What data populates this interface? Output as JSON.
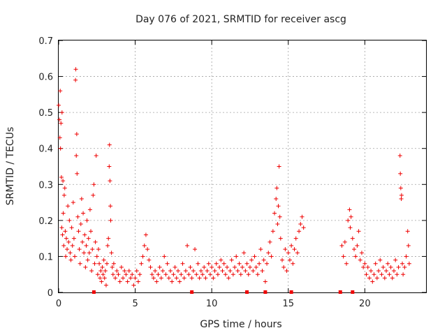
{
  "chart_data": {
    "type": "scatter",
    "title": "Day 076 of 2021, SRMTID for receiver ascg",
    "xlabel": "GPS time / hours",
    "ylabel": "SRMTID / TECUs",
    "xlim": [
      0,
      24
    ],
    "ylim": [
      0,
      0.7
    ],
    "xticks": [
      0,
      5,
      10,
      15,
      20
    ],
    "xtick_labels": [
      "0",
      "5",
      "10",
      "15",
      "20"
    ],
    "yticks": [
      0,
      0.1,
      0.2,
      0.3,
      0.4,
      0.5,
      0.6,
      0.7
    ],
    "ytick_labels": [
      "0",
      "0.1",
      "0.2",
      "0.3",
      "0.4",
      "0.5",
      "0.6",
      "0.7"
    ],
    "grid": true,
    "marker": "plus",
    "color": "#ee0000",
    "series": [
      {
        "name": "SRMTID",
        "points": [
          [
            0.0,
            0.52
          ],
          [
            0.05,
            0.48
          ],
          [
            0.08,
            0.43
          ],
          [
            0.1,
            0.56
          ],
          [
            0.12,
            0.4
          ],
          [
            0.15,
            0.47
          ],
          [
            0.18,
            0.32
          ],
          [
            0.2,
            0.18
          ],
          [
            0.22,
            0.5
          ],
          [
            0.25,
            0.16
          ],
          [
            0.28,
            0.31
          ],
          [
            0.3,
            0.22
          ],
          [
            0.33,
            0.13
          ],
          [
            0.36,
            0.27
          ],
          [
            0.4,
            0.29
          ],
          [
            0.43,
            0.17
          ],
          [
            0.46,
            0.1
          ],
          [
            0.5,
            0.15
          ],
          [
            0.55,
            0.12
          ],
          [
            0.6,
            0.24
          ],
          [
            0.65,
            0.14
          ],
          [
            0.7,
            0.2
          ],
          [
            0.75,
            0.11
          ],
          [
            0.8,
            0.09
          ],
          [
            0.85,
            0.18
          ],
          [
            0.9,
            0.13
          ],
          [
            0.95,
            0.25
          ],
          [
            1.0,
            0.15
          ],
          [
            1.05,
            0.1
          ],
          [
            1.1,
            0.59
          ],
          [
            1.12,
            0.62
          ],
          [
            1.15,
            0.38
          ],
          [
            1.18,
            0.44
          ],
          [
            1.2,
            0.33
          ],
          [
            1.25,
            0.21
          ],
          [
            1.3,
            0.17
          ],
          [
            1.35,
            0.12
          ],
          [
            1.4,
            0.08
          ],
          [
            1.45,
            0.19
          ],
          [
            1.5,
            0.26
          ],
          [
            1.55,
            0.14
          ],
          [
            1.6,
            0.22
          ],
          [
            1.65,
            0.11
          ],
          [
            1.7,
            0.16
          ],
          [
            1.75,
            0.07
          ],
          [
            1.8,
            0.13
          ],
          [
            1.85,
            0.2
          ],
          [
            1.9,
            0.09
          ],
          [
            1.95,
            0.15
          ],
          [
            2.0,
            0.11
          ],
          [
            2.05,
            0.23
          ],
          [
            2.1,
            0.17
          ],
          [
            2.15,
            0.06
          ],
          [
            2.2,
            0.12
          ],
          [
            2.25,
            0.27
          ],
          [
            2.3,
            0.3
          ],
          [
            2.35,
            0.08
          ],
          [
            2.4,
            0.14
          ],
          [
            2.45,
            0.38
          ],
          [
            2.5,
            0.1
          ],
          [
            2.55,
            0.05
          ],
          [
            2.6,
            0.12
          ],
          [
            2.65,
            0.08
          ],
          [
            2.7,
            0.04
          ],
          [
            2.75,
            0.06
          ],
          [
            2.8,
            0.03
          ],
          [
            2.85,
            0.07
          ],
          [
            2.9,
            0.05
          ],
          [
            2.95,
            0.09
          ],
          [
            3.0,
            0.04
          ],
          [
            3.05,
            0.06
          ],
          [
            3.1,
            0.02
          ],
          [
            3.15,
            0.08
          ],
          [
            3.2,
            0.13
          ],
          [
            3.25,
            0.15
          ],
          [
            3.3,
            0.35
          ],
          [
            3.32,
            0.41
          ],
          [
            3.35,
            0.31
          ],
          [
            3.38,
            0.24
          ],
          [
            3.4,
            0.2
          ],
          [
            3.45,
            0.11
          ],
          [
            3.5,
            0.07
          ],
          [
            3.55,
            0.05
          ],
          [
            3.6,
            0.08
          ],
          [
            3.7,
            0.04
          ],
          [
            3.8,
            0.06
          ],
          [
            3.9,
            0.05
          ],
          [
            4.0,
            0.03
          ],
          [
            4.1,
            0.07
          ],
          [
            4.2,
            0.04
          ],
          [
            4.3,
            0.06
          ],
          [
            4.4,
            0.05
          ],
          [
            4.5,
            0.03
          ],
          [
            4.6,
            0.06
          ],
          [
            4.7,
            0.04
          ],
          [
            4.8,
            0.05
          ],
          [
            4.9,
            0.02
          ],
          [
            5.0,
            0.04
          ],
          [
            5.1,
            0.06
          ],
          [
            5.2,
            0.03
          ],
          [
            5.3,
            0.05
          ],
          [
            5.4,
            0.08
          ],
          [
            5.5,
            0.1
          ],
          [
            5.6,
            0.13
          ],
          [
            5.7,
            0.16
          ],
          [
            5.8,
            0.12
          ],
          [
            5.9,
            0.09
          ],
          [
            6.0,
            0.07
          ],
          [
            6.1,
            0.05
          ],
          [
            6.2,
            0.04
          ],
          [
            6.3,
            0.06
          ],
          [
            6.4,
            0.03
          ],
          [
            6.5,
            0.05
          ],
          [
            6.6,
            0.07
          ],
          [
            6.7,
            0.04
          ],
          [
            6.8,
            0.06
          ],
          [
            6.9,
            0.1
          ],
          [
            7.0,
            0.05
          ],
          [
            7.1,
            0.08
          ],
          [
            7.2,
            0.04
          ],
          [
            7.3,
            0.06
          ],
          [
            7.4,
            0.03
          ],
          [
            7.5,
            0.05
          ],
          [
            7.6,
            0.07
          ],
          [
            7.7,
            0.04
          ],
          [
            7.8,
            0.06
          ],
          [
            7.9,
            0.03
          ],
          [
            8.0,
            0.05
          ],
          [
            8.1,
            0.08
          ],
          [
            8.2,
            0.04
          ],
          [
            8.3,
            0.06
          ],
          [
            8.4,
            0.13
          ],
          [
            8.5,
            0.05
          ],
          [
            8.6,
            0.07
          ],
          [
            8.7,
            0.04
          ],
          [
            8.8,
            0.06
          ],
          [
            8.9,
            0.12
          ],
          [
            9.0,
            0.05
          ],
          [
            9.1,
            0.08
          ],
          [
            9.2,
            0.04
          ],
          [
            9.3,
            0.06
          ],
          [
            9.4,
            0.05
          ],
          [
            9.5,
            0.07
          ],
          [
            9.6,
            0.04
          ],
          [
            9.7,
            0.06
          ],
          [
            9.8,
            0.08
          ],
          [
            9.9,
            0.05
          ],
          [
            10.0,
            0.07
          ],
          [
            10.1,
            0.04
          ],
          [
            10.2,
            0.06
          ],
          [
            10.3,
            0.08
          ],
          [
            10.4,
            0.05
          ],
          [
            10.5,
            0.07
          ],
          [
            10.6,
            0.09
          ],
          [
            10.7,
            0.06
          ],
          [
            10.8,
            0.08
          ],
          [
            10.9,
            0.05
          ],
          [
            11.0,
            0.07
          ],
          [
            11.1,
            0.04
          ],
          [
            11.2,
            0.06
          ],
          [
            11.3,
            0.09
          ],
          [
            11.4,
            0.05
          ],
          [
            11.5,
            0.07
          ],
          [
            11.6,
            0.1
          ],
          [
            11.7,
            0.06
          ],
          [
            11.8,
            0.08
          ],
          [
            11.9,
            0.05
          ],
          [
            12.0,
            0.07
          ],
          [
            12.1,
            0.11
          ],
          [
            12.2,
            0.06
          ],
          [
            12.3,
            0.08
          ],
          [
            12.4,
            0.05
          ],
          [
            12.5,
            0.07
          ],
          [
            12.6,
            0.09
          ],
          [
            12.7,
            0.06
          ],
          [
            12.8,
            0.1
          ],
          [
            12.9,
            0.07
          ],
          [
            13.0,
            0.05
          ],
          [
            13.1,
            0.08
          ],
          [
            13.2,
            0.12
          ],
          [
            13.3,
            0.06
          ],
          [
            13.4,
            0.09
          ],
          [
            13.5,
            0.03
          ],
          [
            13.6,
            0.08
          ],
          [
            13.7,
            0.11
          ],
          [
            13.8,
            0.14
          ],
          [
            13.9,
            0.1
          ],
          [
            14.0,
            0.17
          ],
          [
            14.1,
            0.22
          ],
          [
            14.2,
            0.26
          ],
          [
            14.25,
            0.29
          ],
          [
            14.3,
            0.19
          ],
          [
            14.35,
            0.24
          ],
          [
            14.4,
            0.35
          ],
          [
            14.45,
            0.21
          ],
          [
            14.5,
            0.15
          ],
          [
            14.6,
            0.09
          ],
          [
            14.7,
            0.07
          ],
          [
            14.8,
            0.12
          ],
          [
            14.9,
            0.06
          ],
          [
            15.0,
            0.11
          ],
          [
            15.1,
            0.09
          ],
          [
            15.2,
            0.13
          ],
          [
            15.3,
            0.08
          ],
          [
            15.4,
            0.12
          ],
          [
            15.5,
            0.15
          ],
          [
            15.6,
            0.11
          ],
          [
            15.7,
            0.17
          ],
          [
            15.8,
            0.19
          ],
          [
            15.9,
            0.21
          ],
          [
            16.0,
            0.18
          ],
          [
            18.5,
            0.13
          ],
          [
            18.6,
            0.1
          ],
          [
            18.7,
            0.14
          ],
          [
            18.8,
            0.08
          ],
          [
            18.9,
            0.2
          ],
          [
            19.0,
            0.23
          ],
          [
            19.05,
            0.18
          ],
          [
            19.1,
            0.21
          ],
          [
            19.2,
            0.15
          ],
          [
            19.3,
            0.12
          ],
          [
            19.4,
            0.1
          ],
          [
            19.5,
            0.13
          ],
          [
            19.6,
            0.17
          ],
          [
            19.7,
            0.09
          ],
          [
            19.8,
            0.11
          ],
          [
            19.9,
            0.07
          ],
          [
            20.0,
            0.08
          ],
          [
            20.1,
            0.05
          ],
          [
            20.2,
            0.07
          ],
          [
            20.3,
            0.04
          ],
          [
            20.4,
            0.06
          ],
          [
            20.5,
            0.03
          ],
          [
            20.6,
            0.05
          ],
          [
            20.7,
            0.08
          ],
          [
            20.8,
            0.04
          ],
          [
            20.9,
            0.06
          ],
          [
            21.0,
            0.09
          ],
          [
            21.1,
            0.05
          ],
          [
            21.2,
            0.07
          ],
          [
            21.3,
            0.04
          ],
          [
            21.4,
            0.06
          ],
          [
            21.5,
            0.08
          ],
          [
            21.6,
            0.05
          ],
          [
            21.7,
            0.07
          ],
          [
            21.8,
            0.04
          ],
          [
            21.9,
            0.06
          ],
          [
            22.0,
            0.09
          ],
          [
            22.1,
            0.05
          ],
          [
            22.2,
            0.07
          ],
          [
            22.3,
            0.38
          ],
          [
            22.32,
            0.33
          ],
          [
            22.35,
            0.29
          ],
          [
            22.38,
            0.26
          ],
          [
            22.4,
            0.27
          ],
          [
            22.45,
            0.08
          ],
          [
            22.5,
            0.05
          ],
          [
            22.6,
            0.07
          ],
          [
            22.7,
            0.1
          ],
          [
            22.8,
            0.17
          ],
          [
            22.85,
            0.13
          ],
          [
            22.9,
            0.08
          ]
        ]
      },
      {
        "name": "zero-markers",
        "x": [
          2.3,
          8.7,
          12.3,
          13.5,
          15.2,
          18.4,
          19.2
        ]
      }
    ]
  }
}
